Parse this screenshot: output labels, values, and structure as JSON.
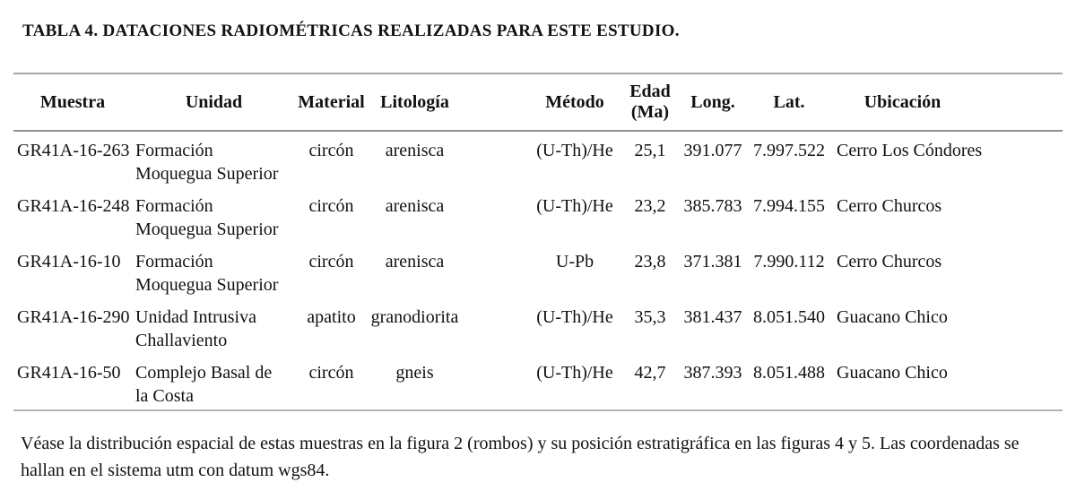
{
  "title": "TABLA 4. DATACIONES RADIOMÉTRICAS REALIZADAS PARA ESTE ESTUDIO.",
  "table": {
    "headers": {
      "muestra": "Muestra",
      "unidad": "Unidad",
      "material": "Material",
      "litologia": "Litología",
      "metodo": "Método",
      "edad": "Edad\n(Ma)",
      "long": "Long.",
      "lat": "Lat.",
      "ubicacion": "Ubicación"
    },
    "rows": [
      {
        "muestra": "GR41A-16-263",
        "unidad": "Formación Moquegua Superior",
        "material": "circón",
        "litologia": "arenisca",
        "metodo": "(U-Th)/He",
        "edad": "25,1",
        "long": "391.077",
        "lat": "7.997.522",
        "ubicacion": "Cerro Los Cóndores"
      },
      {
        "muestra": "GR41A-16-248",
        "unidad": "Formación Moquegua Superior",
        "material": "circón",
        "litologia": "arenisca",
        "metodo": "(U-Th)/He",
        "edad": "23,2",
        "long": "385.783",
        "lat": "7.994.155",
        "ubicacion": "Cerro Churcos"
      },
      {
        "muestra": "GR41A-16-10",
        "unidad": "Formación Moquegua Superior",
        "material": "circón",
        "litologia": "arenisca",
        "metodo": "U-Pb",
        "edad": "23,8",
        "long": "371.381",
        "lat": "7.990.112",
        "ubicacion": "Cerro Churcos"
      },
      {
        "muestra": "GR41A-16-290",
        "unidad": "Unidad Intrusiva Challaviento",
        "material": "apatito",
        "litologia": "granodiorita",
        "metodo": "(U-Th)/He",
        "edad": "35,3",
        "long": "381.437",
        "lat": "8.051.540",
        "ubicacion": "Guacano Chico"
      },
      {
        "muestra": "GR41A-16-50",
        "unidad": "Complejo Basal de la Costa",
        "material": "circón",
        "litologia": "gneis",
        "metodo": "(U-Th)/He",
        "edad": "42,7",
        "long": "387.393",
        "lat": "8.051.488",
        "ubicacion": "Guacano Chico"
      }
    ]
  },
  "footnote": "Véase la distribución espacial de estas muestras en la figura 2 (rombos) y su posición estratigráfica en las figuras 4 y 5. Las coordenadas se hallan en el sistema utm con datum wgs84."
}
